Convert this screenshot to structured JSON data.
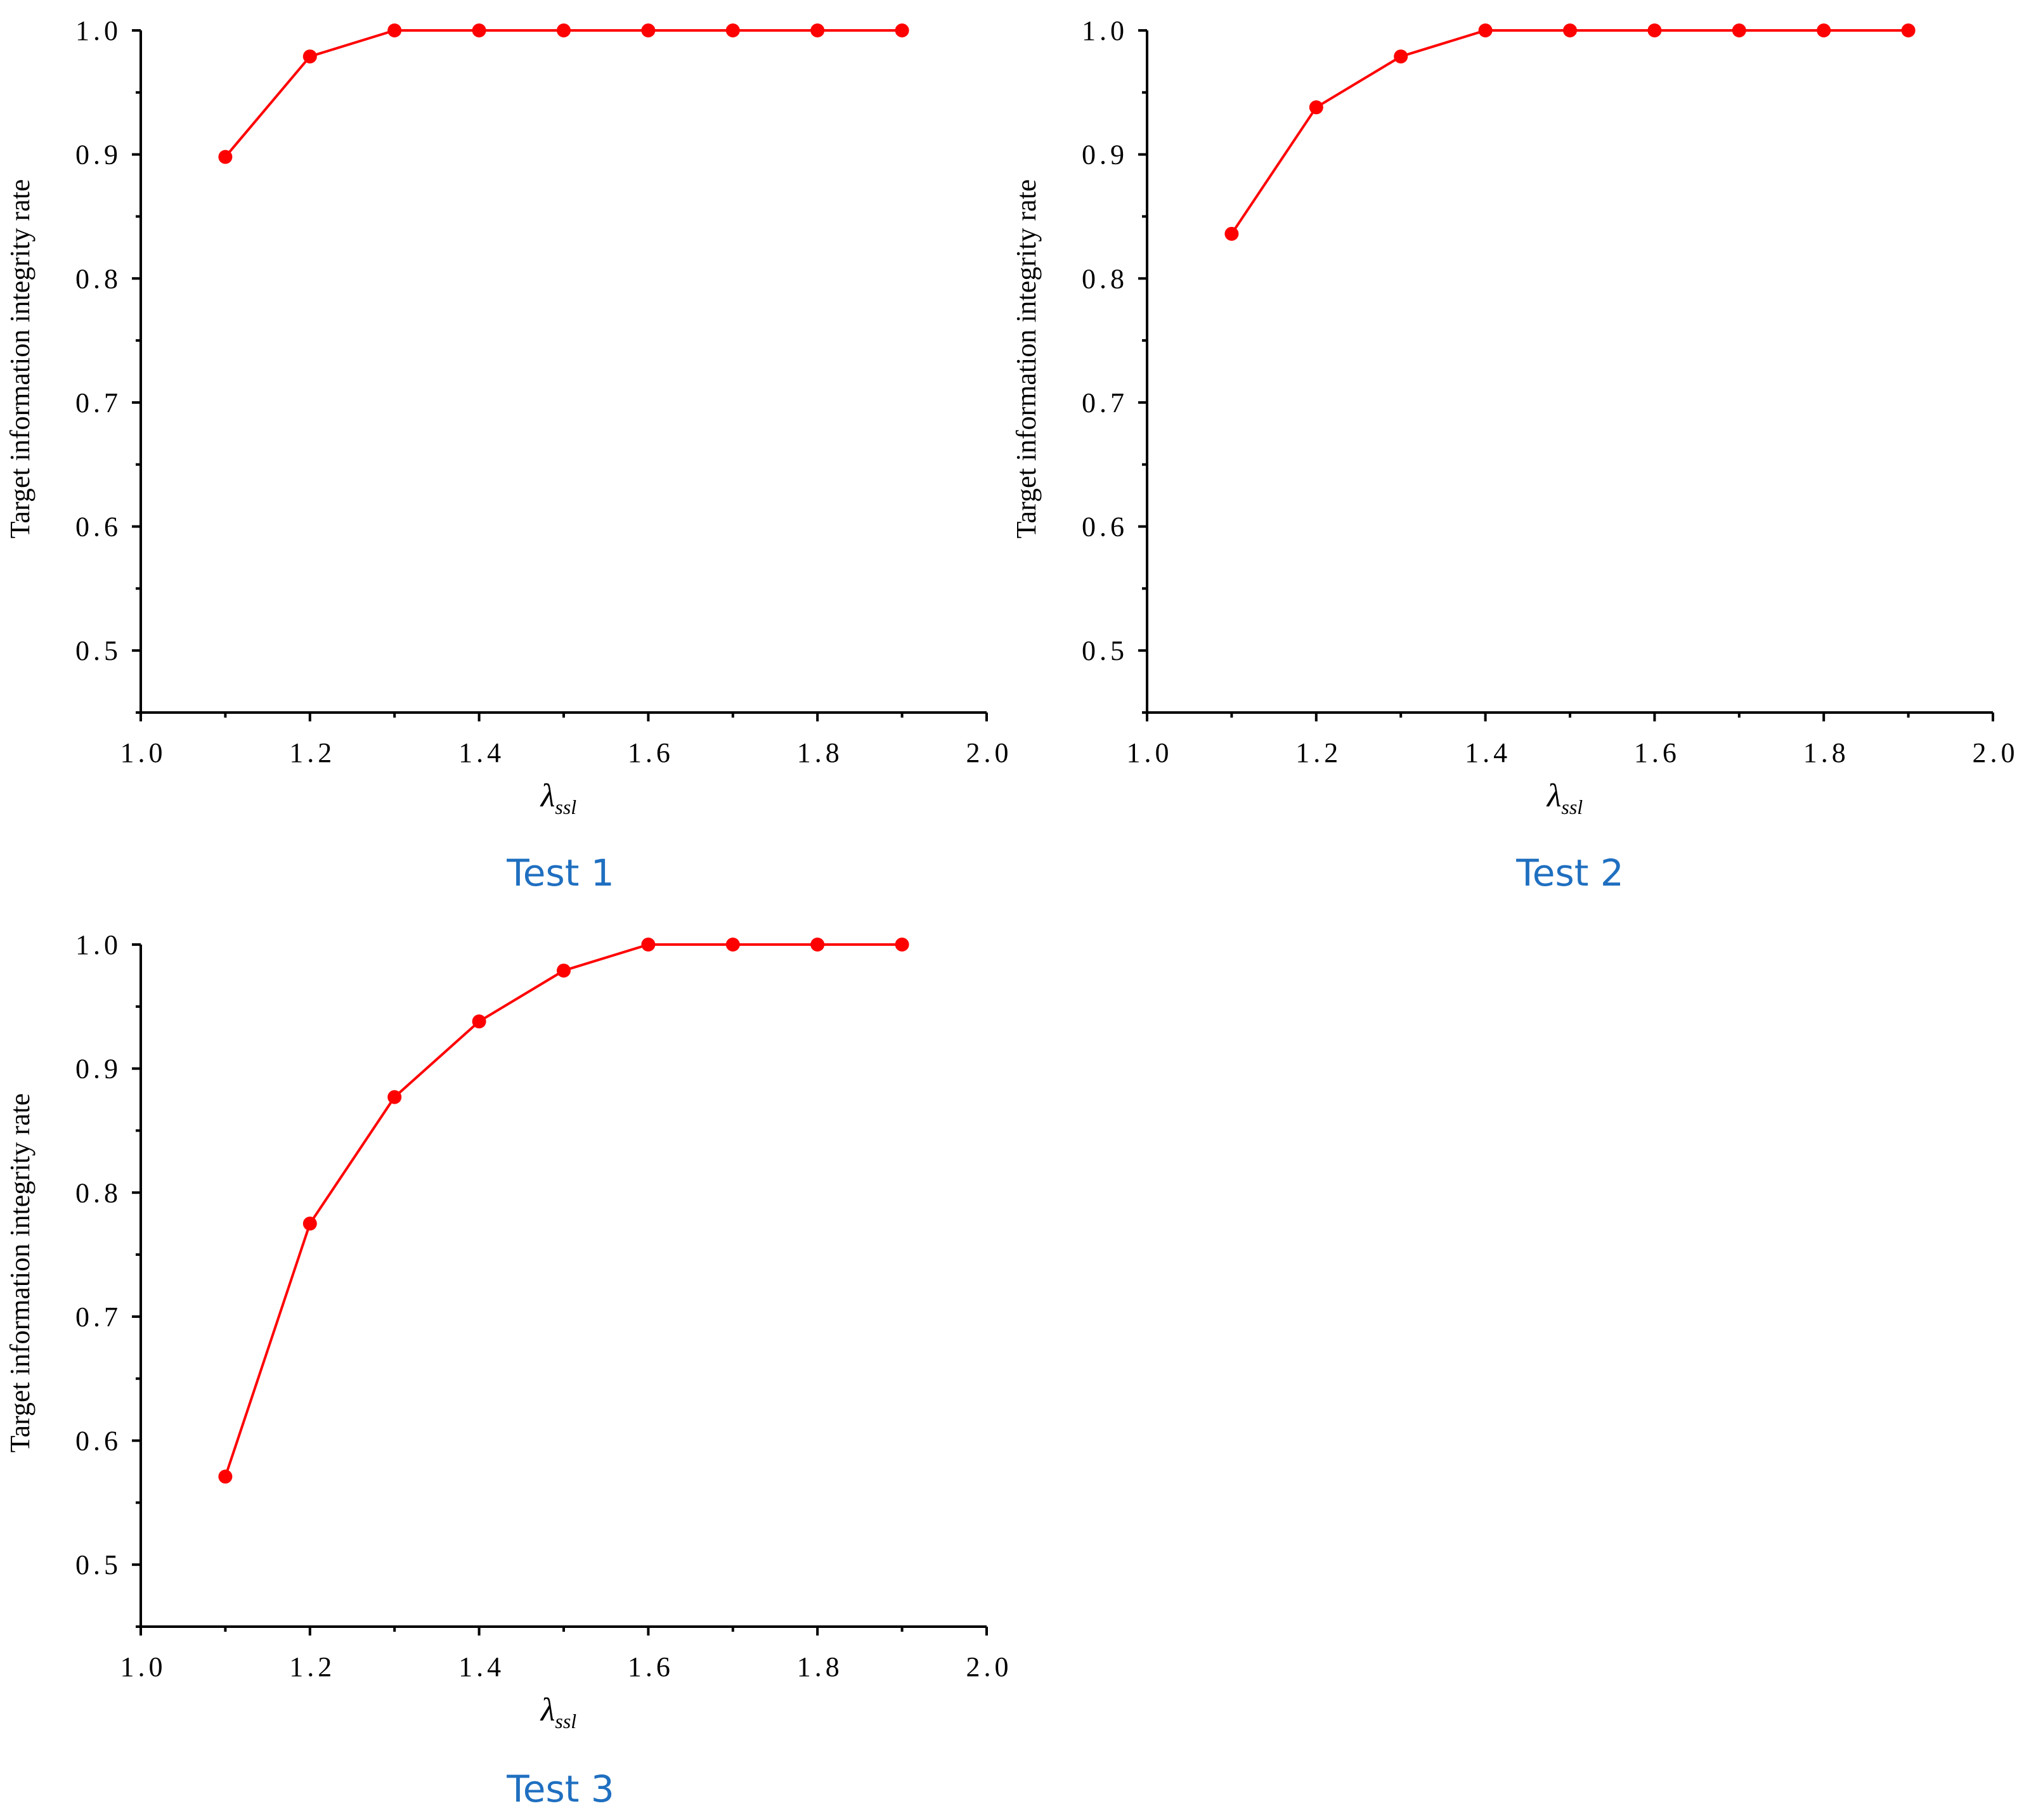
{
  "chart_data": [
    {
      "type": "line",
      "caption": "Test 1",
      "xlabel": "λ",
      "xlabel_subscript": "ssl",
      "ylabel": "Target information integrity rate",
      "xlim": [
        1.0,
        2.0
      ],
      "ylim": [
        0.45,
        1.0
      ],
      "x_ticks": [
        "1.0",
        "1.2",
        "1.4",
        "1.6",
        "1.8",
        "2.0"
      ],
      "y_ticks": [
        "0.5",
        "0.6",
        "0.7",
        "0.8",
        "0.9",
        "1.0"
      ],
      "grid": false,
      "series": [
        {
          "color": "#ff0000",
          "x": [
            1.1,
            1.2,
            1.3,
            1.4,
            1.5,
            1.6,
            1.7,
            1.8,
            1.9
          ],
          "values": [
            0.898,
            0.979,
            1.0,
            1.0,
            1.0,
            1.0,
            1.0,
            1.0,
            1.0
          ]
        }
      ]
    },
    {
      "type": "line",
      "caption": "Test 2",
      "xlabel": "λ",
      "xlabel_subscript": "ssl",
      "ylabel": "Target information integrity rate",
      "xlim": [
        1.0,
        2.0
      ],
      "ylim": [
        0.45,
        1.0
      ],
      "x_ticks": [
        "1.0",
        "1.2",
        "1.4",
        "1.6",
        "1.8",
        "2.0"
      ],
      "y_ticks": [
        "0.5",
        "0.6",
        "0.7",
        "0.8",
        "0.9",
        "1.0"
      ],
      "grid": false,
      "series": [
        {
          "color": "#ff0000",
          "x": [
            1.1,
            1.2,
            1.3,
            1.4,
            1.5,
            1.6,
            1.7,
            1.8,
            1.9
          ],
          "values": [
            0.836,
            0.938,
            0.979,
            1.0,
            1.0,
            1.0,
            1.0,
            1.0,
            1.0
          ]
        }
      ]
    },
    {
      "type": "line",
      "caption": "Test 3",
      "xlabel": "λ",
      "xlabel_subscript": "ssl",
      "ylabel": "Target information integrity rate",
      "xlim": [
        1.0,
        2.0
      ],
      "ylim": [
        0.45,
        1.0
      ],
      "x_ticks": [
        "1.0",
        "1.2",
        "1.4",
        "1.6",
        "1.8",
        "2.0"
      ],
      "y_ticks": [
        "0.5",
        "0.6",
        "0.7",
        "0.8",
        "0.9",
        "1.0"
      ],
      "grid": false,
      "series": [
        {
          "color": "#ff0000",
          "x": [
            1.1,
            1.2,
            1.3,
            1.4,
            1.5,
            1.6,
            1.7,
            1.8,
            1.9
          ],
          "values": [
            0.571,
            0.775,
            0.877,
            0.938,
            0.979,
            1.0,
            1.0,
            1.0,
            1.0
          ]
        }
      ]
    }
  ]
}
